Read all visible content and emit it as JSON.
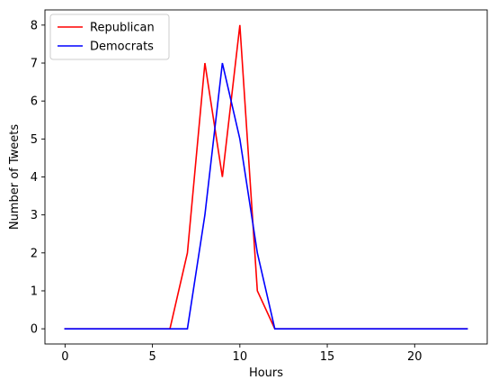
{
  "chart_data": {
    "type": "line",
    "title": "",
    "xlabel": "Hours",
    "ylabel": "Number of Tweets",
    "xlim": [
      -1.15,
      24.15
    ],
    "ylim": [
      -0.4,
      8.4
    ],
    "xticks": [
      0,
      5,
      10,
      15,
      20
    ],
    "yticks": [
      0,
      1,
      2,
      3,
      4,
      5,
      6,
      7,
      8
    ],
    "grid": false,
    "legend_position": "top-left",
    "x": [
      0,
      1,
      2,
      3,
      4,
      5,
      6,
      7,
      8,
      9,
      10,
      11,
      12,
      13,
      14,
      15,
      16,
      17,
      18,
      19,
      20,
      21,
      22,
      23
    ],
    "series": [
      {
        "name": "Republican",
        "color": "#ff0000",
        "values": [
          0,
          0,
          0,
          0,
          0,
          0,
          0,
          2,
          7,
          4,
          8,
          1,
          0,
          0,
          0,
          0,
          0,
          0,
          0,
          0,
          0,
          0,
          0,
          0
        ]
      },
      {
        "name": "Democrats",
        "color": "#0000ff",
        "values": [
          0,
          0,
          0,
          0,
          0,
          0,
          0,
          0,
          3,
          7,
          5,
          2,
          0,
          0,
          0,
          0,
          0,
          0,
          0,
          0,
          0,
          0,
          0,
          0
        ]
      }
    ]
  }
}
